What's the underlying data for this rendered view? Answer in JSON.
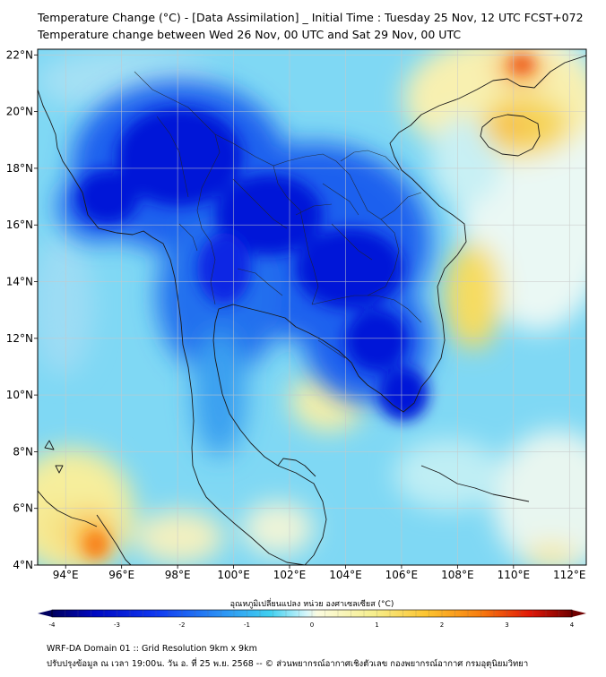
{
  "title": {
    "line1": "Temperature Change (°C) - [Data Assimilation] _ Initial Time : Tuesday 25 Nov, 12 UTC FCST+072",
    "line2": "Temperature change between Wed 26 Nov, 00 UTC and Sat 29 Nov, 00 UTC"
  },
  "map": {
    "lat_ticks": [
      "22°N",
      "20°N",
      "18°N",
      "16°N",
      "14°N",
      "12°N",
      "10°N",
      "8°N",
      "6°N",
      "4°N"
    ],
    "lon_ticks": [
      "94°E",
      "96°E",
      "98°E",
      "100°E",
      "102°E",
      "104°E",
      "106°E",
      "108°E",
      "110°E",
      "112°E"
    ],
    "lat_range": [
      4,
      22.2
    ],
    "lon_range": [
      93,
      112.6
    ],
    "grid": true
  },
  "colorbar": {
    "title": "อุณหภูมิเปลี่ยนแปลง หน่วย องศาเซลเซียส (°C)",
    "ticks": [
      "-4",
      "-3",
      "-2",
      "-1",
      "0",
      "1",
      "2",
      "3",
      "4"
    ],
    "range": [
      -4,
      4
    ]
  },
  "footer": {
    "line1": "WRF-DA Domain 01 :: Grid Resolution 9km x 9km",
    "line2": "ปรับปรุงข้อมูล ณ เวลา 19:00น. วัน อ. ที่ 25 พ.ย. 2568 -- © ส่วนพยากรณ์อากาศเชิงตัวเลข กองพยากรณ์อากาศ กรมอุตุนิยมวิทยา"
  },
  "colors": {
    "deep_blue": "#0010d8",
    "blue": "#1e5cf0",
    "light_blue": "#42c8f0",
    "pale_cyan": "#a8e8f4",
    "pale_yellow": "#f6f4b8",
    "yellow": "#fcd040",
    "orange": "#f89018",
    "red": "#e83010"
  }
}
